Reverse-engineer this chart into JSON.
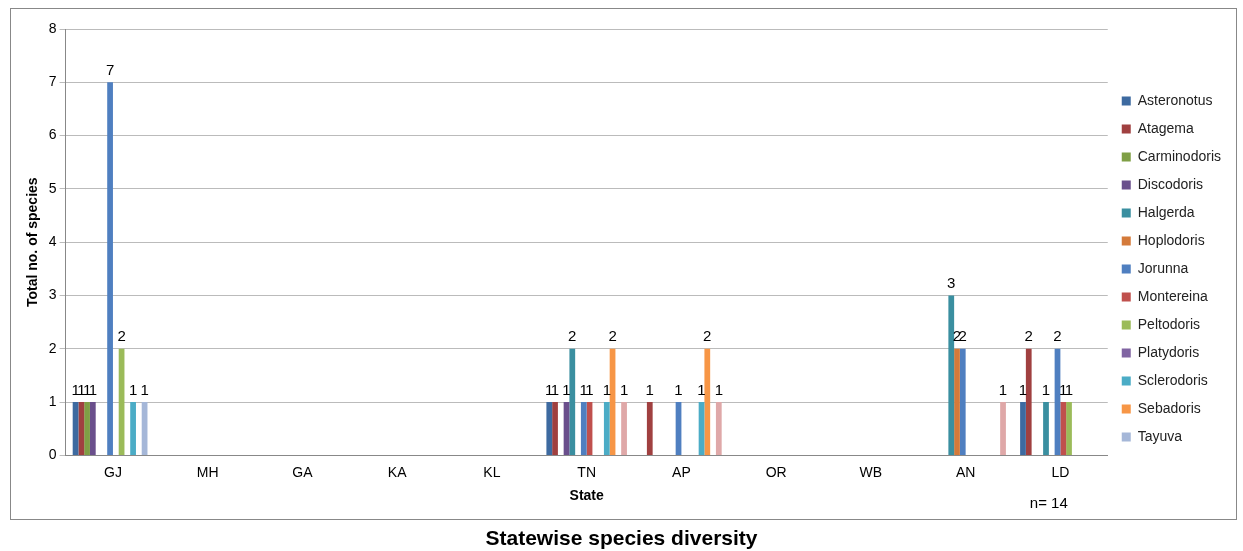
{
  "chart_data": {
    "type": "bar",
    "title": "Statewise species diversity",
    "xlabel": "State",
    "ylabel": "Total no. of species",
    "categories": [
      "GJ",
      "MH",
      "GA",
      "KA",
      "KL",
      "TN",
      "AP",
      "OR",
      "WB",
      "AN",
      "LD"
    ],
    "series": [
      {
        "name": "Asteronotus",
        "color": "#3d6aa0",
        "values": [
          1,
          null,
          null,
          null,
          null,
          1,
          null,
          null,
          null,
          null,
          1
        ]
      },
      {
        "name": "Atagema",
        "color": "#a04040",
        "values": [
          1,
          null,
          null,
          null,
          null,
          1,
          1,
          null,
          null,
          null,
          2
        ]
      },
      {
        "name": "Carminodoris",
        "color": "#7f9f45",
        "values": [
          1,
          null,
          null,
          null,
          null,
          null,
          null,
          null,
          null,
          null,
          null
        ]
      },
      {
        "name": "Discodoris",
        "color": "#6a4f8c",
        "values": [
          1,
          null,
          null,
          null,
          null,
          1,
          null,
          null,
          null,
          null,
          null
        ]
      },
      {
        "name": "Halgerda",
        "color": "#3a8fa0",
        "values": [
          null,
          null,
          null,
          null,
          null,
          2,
          null,
          null,
          null,
          3,
          1
        ]
      },
      {
        "name": "Hoplodoris",
        "color": "#d47a3a",
        "values": [
          null,
          null,
          null,
          null,
          null,
          null,
          null,
          null,
          null,
          2,
          null
        ]
      },
      {
        "name": "Jorunna",
        "color": "#4f7fc0",
        "values": [
          7,
          null,
          null,
          null,
          null,
          1,
          1,
          null,
          null,
          2,
          2
        ]
      },
      {
        "name": "Montereina",
        "color": "#c0504d",
        "values": [
          null,
          null,
          null,
          null,
          null,
          1,
          null,
          null,
          null,
          null,
          1
        ]
      },
      {
        "name": "Peltodoris",
        "color": "#9bbb59",
        "values": [
          2,
          null,
          null,
          null,
          null,
          null,
          null,
          null,
          null,
          null,
          1
        ]
      },
      {
        "name": "Platydoris",
        "color": "#8064a2",
        "values": [
          null,
          null,
          null,
          null,
          null,
          null,
          null,
          null,
          null,
          null,
          null
        ]
      },
      {
        "name": "Sclerodoris",
        "color": "#4bacc6",
        "values": [
          1,
          null,
          null,
          null,
          null,
          1,
          1,
          null,
          null,
          null,
          null
        ]
      },
      {
        "name": "Sebadoris",
        "color": "#f79646",
        "values": [
          null,
          null,
          null,
          null,
          null,
          2,
          2,
          null,
          null,
          null,
          null
        ]
      },
      {
        "name": "Tayuva",
        "color": "#a5b7d8",
        "values": [
          1,
          null,
          null,
          null,
          null,
          null,
          null,
          null,
          null,
          null,
          null
        ]
      },
      {
        "color": "#dfa8a8",
        "values": [
          null,
          null,
          null,
          null,
          null,
          1,
          1,
          null,
          null,
          1,
          null
        ]
      }
    ],
    "ylim": [
      0,
      8
    ],
    "yticks": [
      0,
      1,
      2,
      3,
      4,
      5,
      6,
      7,
      8
    ],
    "grid": "y",
    "legend": "right",
    "data_labels": true,
    "annotations": [
      "n= 14"
    ]
  }
}
